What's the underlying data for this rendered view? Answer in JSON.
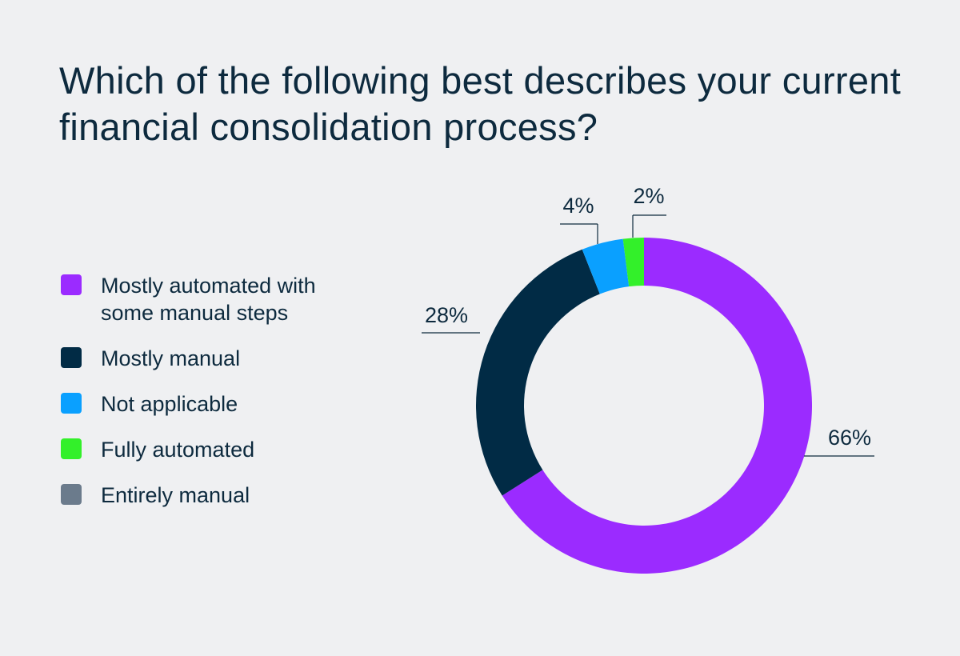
{
  "chart_data": {
    "type": "donut",
    "title": "Which of the following best describes your current financial consolidation process?",
    "categories": [
      "Mostly automated with some manual steps",
      "Mostly manual",
      "Not applicable",
      "Fully automated",
      "Entirely manual"
    ],
    "values": [
      66,
      28,
      4,
      2,
      0
    ],
    "value_labels": [
      "66%",
      "28%",
      "4%",
      "2%",
      null
    ],
    "colors": [
      "#9b2bff",
      "#012b45",
      "#0aa0ff",
      "#33f02a",
      "#6b7b8c"
    ],
    "legend": "left"
  }
}
